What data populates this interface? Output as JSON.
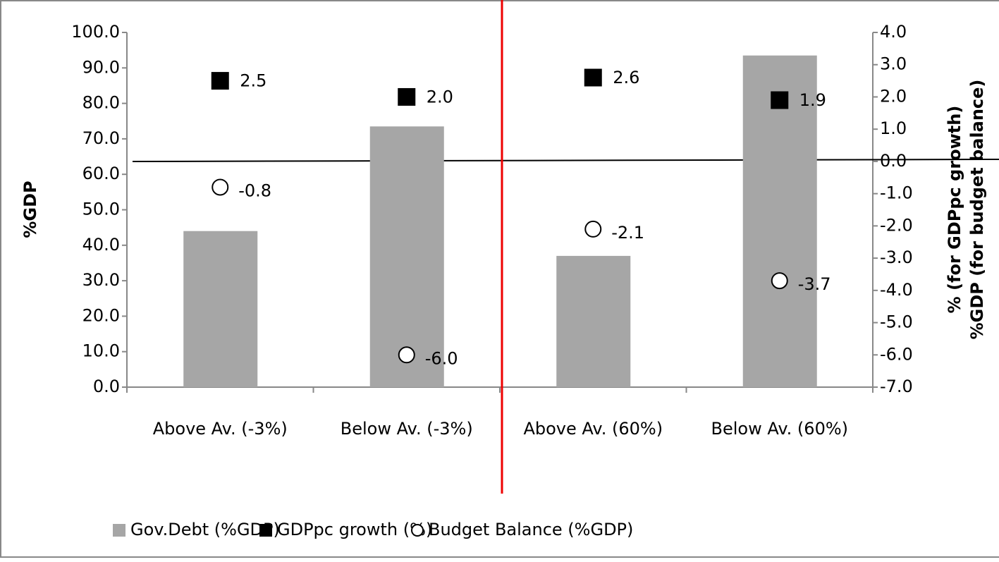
{
  "chart_data": {
    "type": "bar",
    "categories": [
      "Above Av. (-3%)",
      "Below Av. (-3%)",
      "Above Av. (60%)",
      "Below Av. (60%)"
    ],
    "y_label": "%GDP",
    "y2_label": [
      "%  (for GDPpc growth)",
      "%GDP (for budget balance)"
    ],
    "ylim": [
      0,
      100
    ],
    "yticks": [
      {
        "value": 0,
        "label": "0.0"
      },
      {
        "value": 10,
        "label": "10.0"
      },
      {
        "value": 20,
        "label": "20.0"
      },
      {
        "value": 30,
        "label": "30.0"
      },
      {
        "value": 40,
        "label": "40.0"
      },
      {
        "value": 50,
        "label": "50.0"
      },
      {
        "value": 60,
        "label": "60.0"
      },
      {
        "value": 70,
        "label": "70.0"
      },
      {
        "value": 80,
        "label": "80.0"
      },
      {
        "value": 90,
        "label": "90.0"
      },
      {
        "value": 100,
        "label": "100.0"
      }
    ],
    "y2lim": [
      -7,
      4
    ],
    "y2ticks": [
      {
        "value": -7,
        "label": "-7.0"
      },
      {
        "value": -6,
        "label": "-6.0"
      },
      {
        "value": -5,
        "label": "-5.0"
      },
      {
        "value": -4,
        "label": "-4.0"
      },
      {
        "value": -3,
        "label": "-3.0"
      },
      {
        "value": -2,
        "label": "-2.0"
      },
      {
        "value": -1,
        "label": "-1.0"
      },
      {
        "value": 0,
        "label": "0.0"
      },
      {
        "value": 1,
        "label": "1.0"
      },
      {
        "value": 2,
        "label": "2.0"
      },
      {
        "value": 3,
        "label": "3.0"
      },
      {
        "value": 4,
        "label": "4.0"
      }
    ],
    "series": [
      {
        "name": "Gov.Debt (%GDP)",
        "type": "bar",
        "color": "#a6a6a6",
        "values": [
          44,
          73.5,
          37,
          93.5
        ]
      },
      {
        "name": "GDPpc growth (%)",
        "type": "square",
        "axis": "y2",
        "color": "#000000",
        "values": [
          2.5,
          2.0,
          2.6,
          1.9
        ],
        "value_labels": [
          "2.5",
          "2.0",
          "2.6",
          "1.9"
        ]
      },
      {
        "name": "Budget Balance (%GDP)",
        "type": "circle",
        "axis": "y2",
        "color": "#ffffff",
        "values": [
          -0.8,
          -6.0,
          -2.1,
          -3.7
        ],
        "value_labels": [
          "-0.8",
          "-6.0",
          "-2.1",
          "-3.7"
        ]
      }
    ]
  }
}
